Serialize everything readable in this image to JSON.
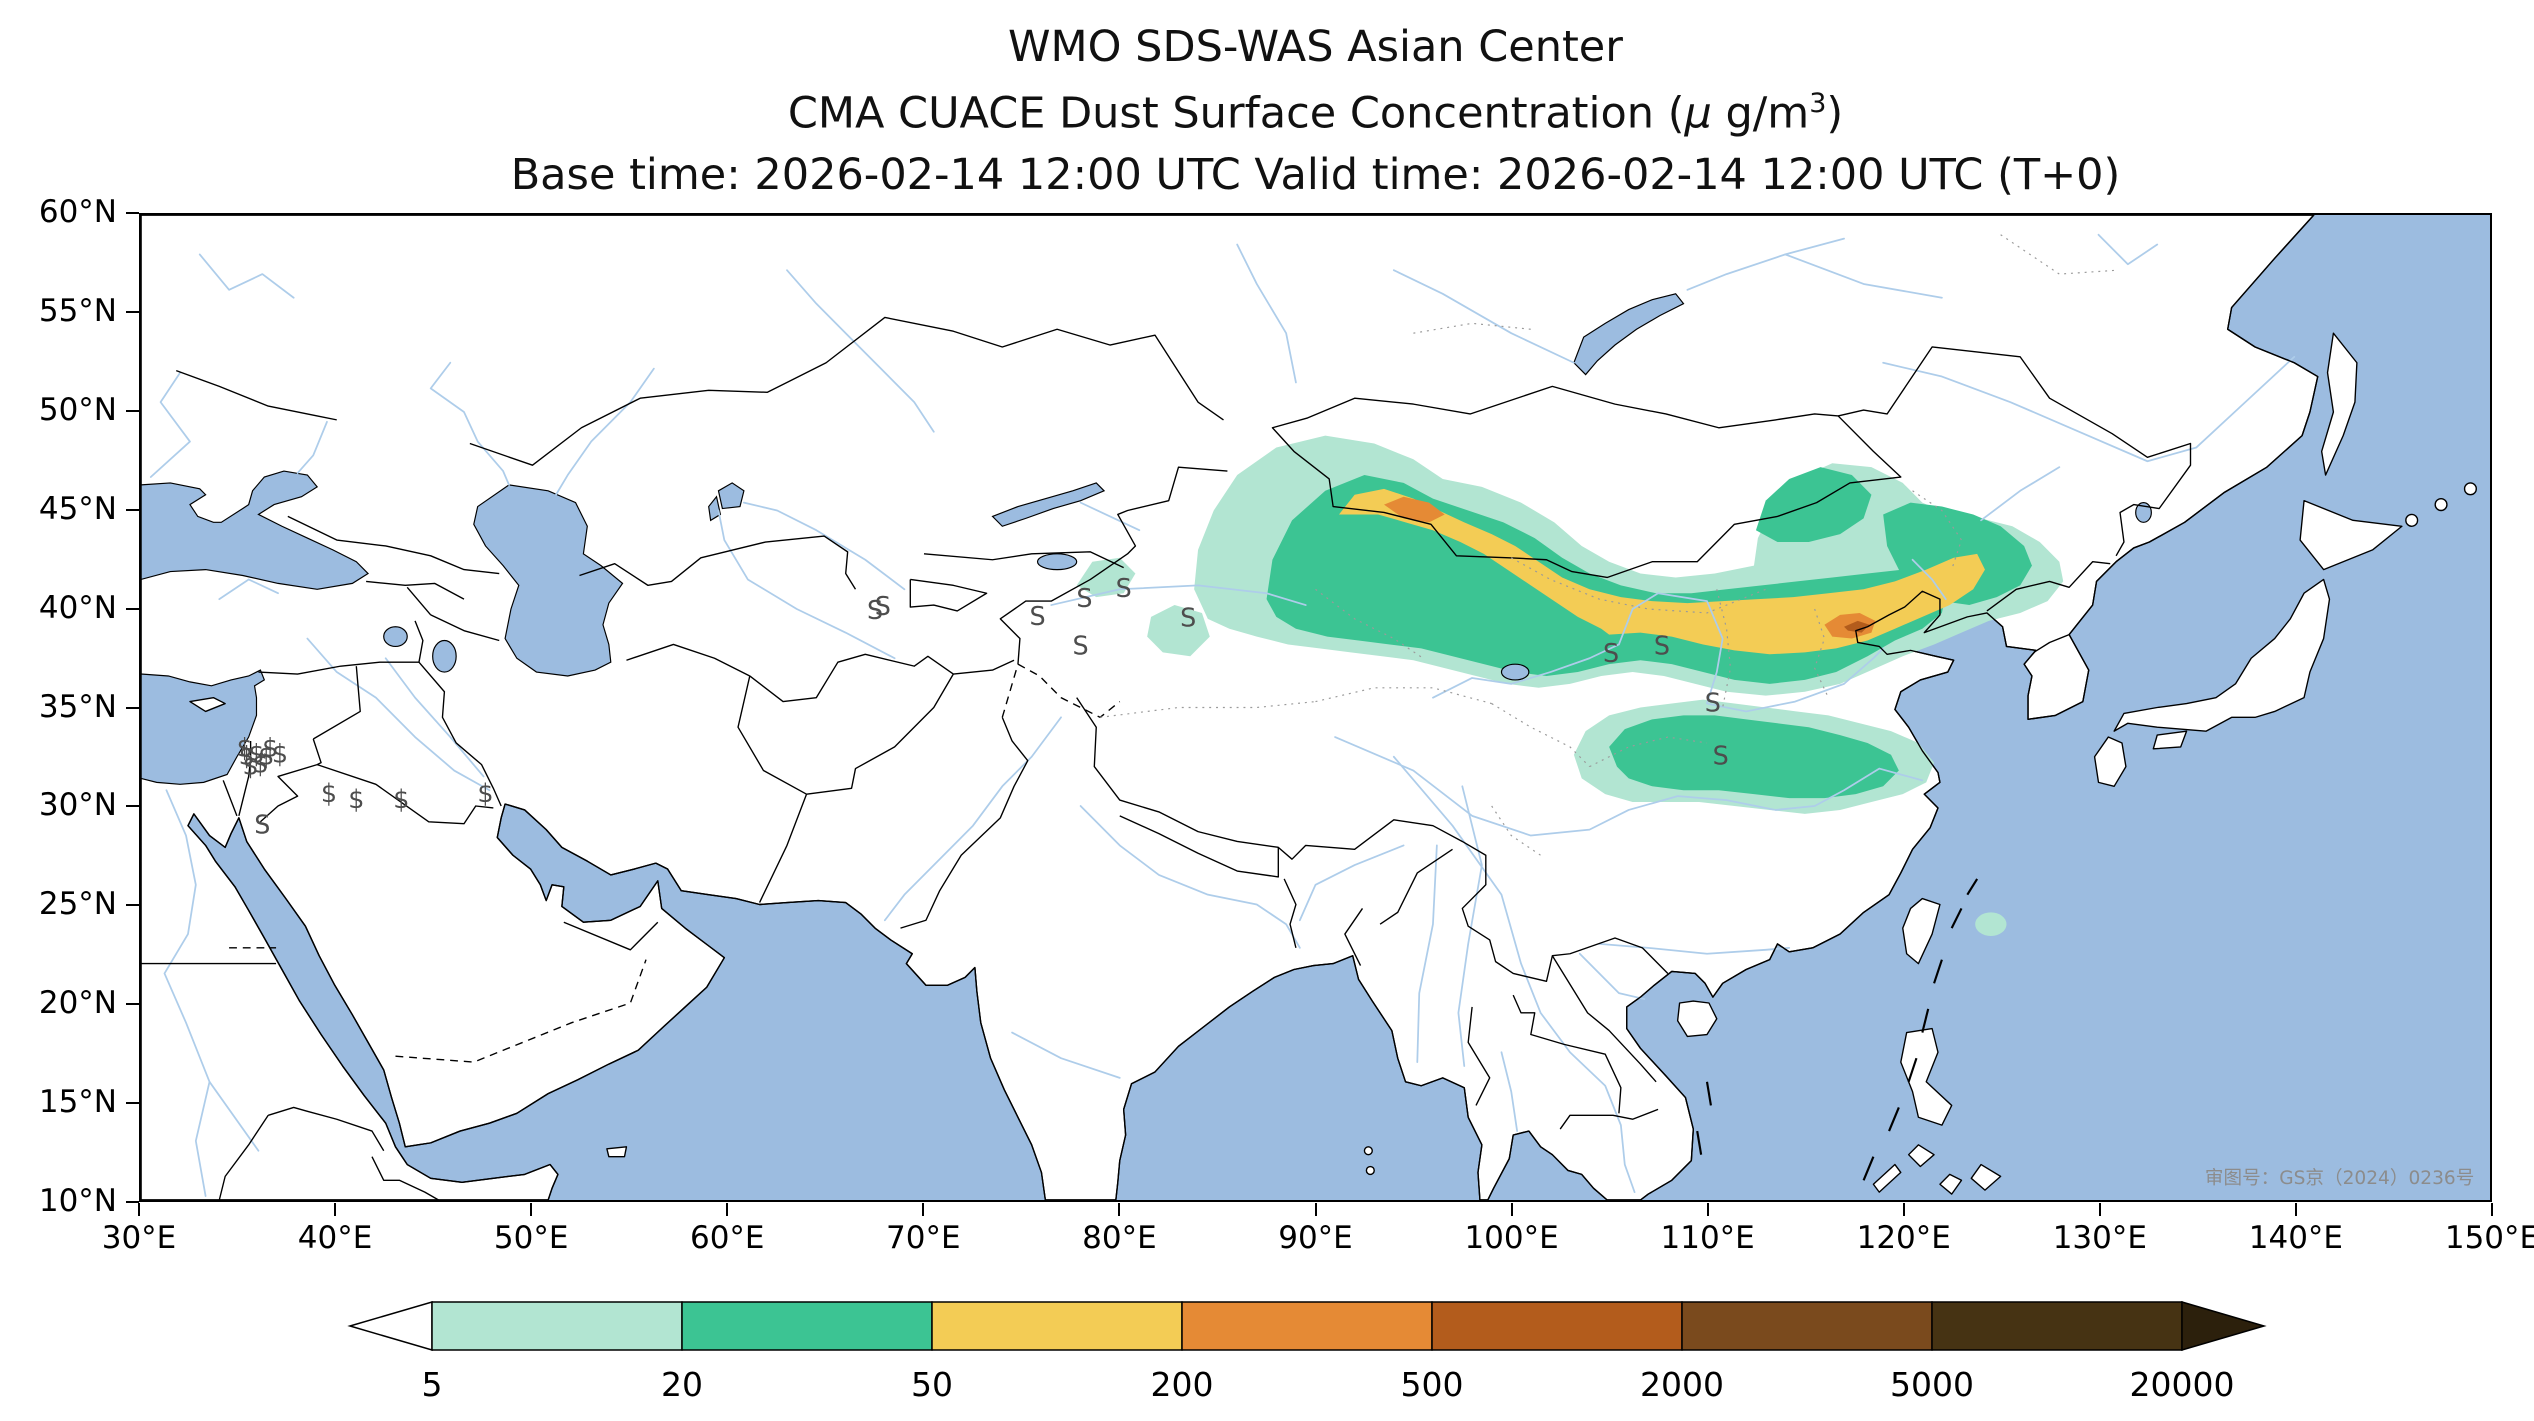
{
  "header": {
    "title1": "WMO SDS-WAS Asian Center",
    "title2_pre": "CMA CUACE Dust Surface Concentration (",
    "title2_mu": "μ",
    "title2_mid": " g/m",
    "title2_sup": "3",
    "title2_close": ")",
    "title3": "Base time: 2026-02-14 12:00 UTC Valid time: 2026-02-14 12:00 UTC (T+0)"
  },
  "axes": {
    "lat_ticks": [
      "60°N",
      "55°N",
      "50°N",
      "45°N",
      "40°N",
      "35°N",
      "30°N",
      "25°N",
      "20°N",
      "15°N",
      "10°N"
    ],
    "lon_ticks": [
      "30°E",
      "40°E",
      "50°E",
      "60°E",
      "70°E",
      "80°E",
      "90°E",
      "100°E",
      "110°E",
      "120°E",
      "130°E",
      "140°E",
      "150°E"
    ],
    "lat_range_deg_n": [
      10,
      60
    ],
    "lon_range_deg_e": [
      30,
      150
    ]
  },
  "colorbar": {
    "labels": [
      "5",
      "20",
      "50",
      "200",
      "500",
      "2000",
      "5000",
      "20000"
    ],
    "colors": [
      "#b2e5d2",
      "#3cc493",
      "#f3cc55",
      "#e58a35",
      "#b35c1c",
      "#7a4a1d",
      "#463313"
    ],
    "underflow_color": "#ffffff",
    "overflow_color": "#2c200c"
  },
  "map": {
    "ocean_color": "#9cbce0",
    "land_color": "#ffffff",
    "river_color": "#aecdea",
    "symbol_color": "#4d4d4d",
    "credit": "审图号：GS京（2024）0236号"
  },
  "chart_data": {
    "type": "map-contour",
    "title": "WMO SDS-WAS Asian Center",
    "variable": "CMA CUACE Dust Surface Concentration",
    "units": "μg/m³",
    "base_time": "2026-02-14 12:00 UTC",
    "valid_time": "2026-02-14 12:00 UTC",
    "forecast_step": "T+0",
    "lon_range_deg_e": [
      30,
      150
    ],
    "lat_range_deg_n": [
      10,
      60
    ],
    "contour_levels_ug_m3": [
      5,
      20,
      50,
      200,
      500,
      2000,
      5000,
      20000
    ],
    "level_colors": [
      "#b2e5d2",
      "#3cc493",
      "#f3cc55",
      "#e58a35",
      "#b35c1c",
      "#7a4a1d",
      "#463313"
    ],
    "dust_plume_regions": [
      {
        "level_ug_m3": ">=5",
        "location": "Large area over Tarim/Gobi, NW China and Mongolia, ~84-128°E, 36-49°N"
      },
      {
        "level_ug_m3": ">=20",
        "location": "Gobi and Inner Mongolia band, ~88-127°E, 36-47°N; secondary band central-east China ~105-120°E, 30-35°N"
      },
      {
        "level_ug_m3": ">=50",
        "location": "Band along Mongolia-China border through North China, ~91-124°E, 38-46°N"
      },
      {
        "level_ug_m3": ">=200",
        "location": "Small cores ~94-96°E 44-46°N and ~116-119°E 38.5-40°N"
      },
      {
        "level_ug_m3": ">=500",
        "location": "Tiny core near ~117-118°E, 39°N"
      }
    ],
    "dust_symbols": [
      {
        "lon": 35.3,
        "lat": 32.5,
        "glyph": "$"
      },
      {
        "lon": 35.4,
        "lat": 32.1,
        "glyph": "$"
      },
      {
        "lon": 35.9,
        "lat": 32.2,
        "glyph": "$"
      },
      {
        "lon": 36.4,
        "lat": 32.1,
        "glyph": "$"
      },
      {
        "lon": 37.1,
        "lat": 32.2,
        "glyph": "$"
      },
      {
        "lon": 35.6,
        "lat": 31.6,
        "glyph": "$"
      },
      {
        "lon": 36.1,
        "lat": 31.7,
        "glyph": "$"
      },
      {
        "lon": 36.6,
        "lat": 32.5,
        "glyph": "$"
      },
      {
        "lon": 39.6,
        "lat": 30.2,
        "glyph": "$"
      },
      {
        "lon": 41.0,
        "lat": 29.9,
        "glyph": "$"
      },
      {
        "lon": 43.3,
        "lat": 29.9,
        "glyph": "$"
      },
      {
        "lon": 36.2,
        "lat": 28.6,
        "glyph": "S"
      },
      {
        "lon": 47.6,
        "lat": 30.2,
        "glyph": "$"
      },
      {
        "lon": 67.5,
        "lat": 39.5,
        "glyph": "S"
      },
      {
        "lon": 67.9,
        "lat": 39.7,
        "glyph": "S"
      },
      {
        "lon": 75.8,
        "lat": 39.2,
        "glyph": "S"
      },
      {
        "lon": 78.2,
        "lat": 40.1,
        "glyph": "S"
      },
      {
        "lon": 80.2,
        "lat": 40.6,
        "glyph": "S"
      },
      {
        "lon": 83.5,
        "lat": 39.1,
        "glyph": "S"
      },
      {
        "lon": 78.0,
        "lat": 37.7,
        "glyph": "S"
      },
      {
        "lon": 105.1,
        "lat": 37.3,
        "glyph": "S"
      },
      {
        "lon": 107.7,
        "lat": 37.7,
        "glyph": "S"
      },
      {
        "lon": 110.3,
        "lat": 34.8,
        "glyph": "S"
      },
      {
        "lon": 110.7,
        "lat": 32.1,
        "glyph": "S"
      }
    ]
  }
}
